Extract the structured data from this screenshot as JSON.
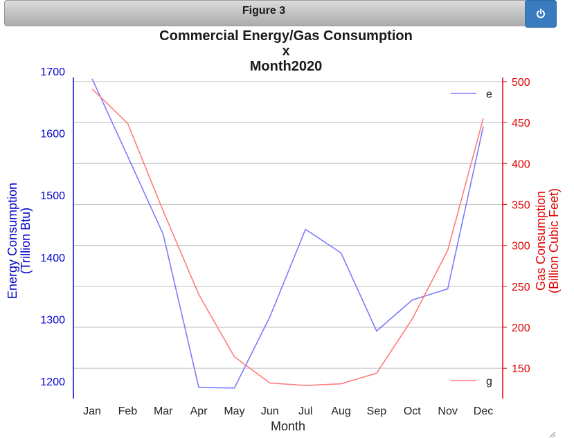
{
  "window": {
    "title": "Figure 3",
    "power_icon": "power-icon"
  },
  "chart_data": {
    "type": "line",
    "title_lines": [
      "Commercial Energy/Gas Consumption",
      "x",
      "Month2020"
    ],
    "xlabel": "Month",
    "categories": [
      "Jan",
      "Feb",
      "Mar",
      "Apr",
      "May",
      "Jun",
      "Jul",
      "Aug",
      "Sep",
      "Oct",
      "Nov",
      "Dec"
    ],
    "left_axis": {
      "label_lines": [
        "Energy Consumption",
        "(Trillion Btu)"
      ],
      "ticks": [
        1200,
        1300,
        1400,
        1500,
        1600,
        1700
      ],
      "ylim": [
        1172,
        1690
      ],
      "color": "#0000cc"
    },
    "right_axis": {
      "label_lines": [
        "Gas Consumption",
        "(Billion Cubic Feet)"
      ],
      "ticks": [
        150,
        200,
        250,
        300,
        350,
        400,
        450,
        500
      ],
      "ylim": [
        113,
        505
      ],
      "color": "#e00000"
    },
    "series": [
      {
        "name": "e",
        "axis": "left",
        "color": "#7b7bff",
        "values": [
          1688,
          1563,
          1437,
          1190,
          1189,
          1304,
          1445,
          1407,
          1281,
          1331,
          1349,
          1611
        ]
      },
      {
        "name": "g",
        "axis": "right",
        "color": "#ff7b7b",
        "values": [
          491,
          449,
          342,
          240,
          164,
          132,
          129,
          131,
          144,
          210,
          294,
          455
        ]
      }
    ],
    "grid": true,
    "legend": {
      "e": "top-right",
      "g": "bottom-right"
    }
  }
}
